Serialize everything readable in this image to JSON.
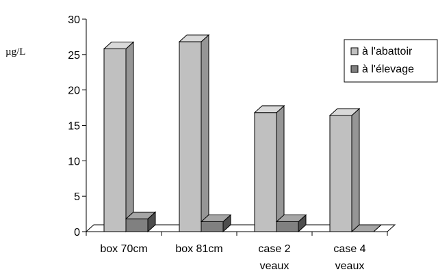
{
  "chart_data": {
    "type": "bar",
    "ylabel": "µg/L",
    "ylim": [
      0,
      30
    ],
    "yticks": [
      "0",
      "5",
      "10",
      "15",
      "20",
      "25",
      "30"
    ],
    "categories": [
      [
        "box 70cm"
      ],
      [
        "box 81cm"
      ],
      [
        "case 2",
        "veaux"
      ],
      [
        "case 4",
        "veaux"
      ]
    ],
    "series": [
      {
        "name": "à  l'abattoir",
        "values": [
          25.8,
          26.8,
          16.8,
          16.4
        ]
      },
      {
        "name": "à  l'élevage",
        "values": [
          1.8,
          1.4,
          1.4,
          0
        ]
      }
    ],
    "colors": {
      "series1_front": "#c0c0c0",
      "series1_side": "#969696",
      "series1_top": "#d9d9d9",
      "series2_front": "#808080",
      "series2_side": "#4d4d4d",
      "series2_top": "#a6a6a6"
    },
    "legend_position": "top-right",
    "grid": false
  }
}
